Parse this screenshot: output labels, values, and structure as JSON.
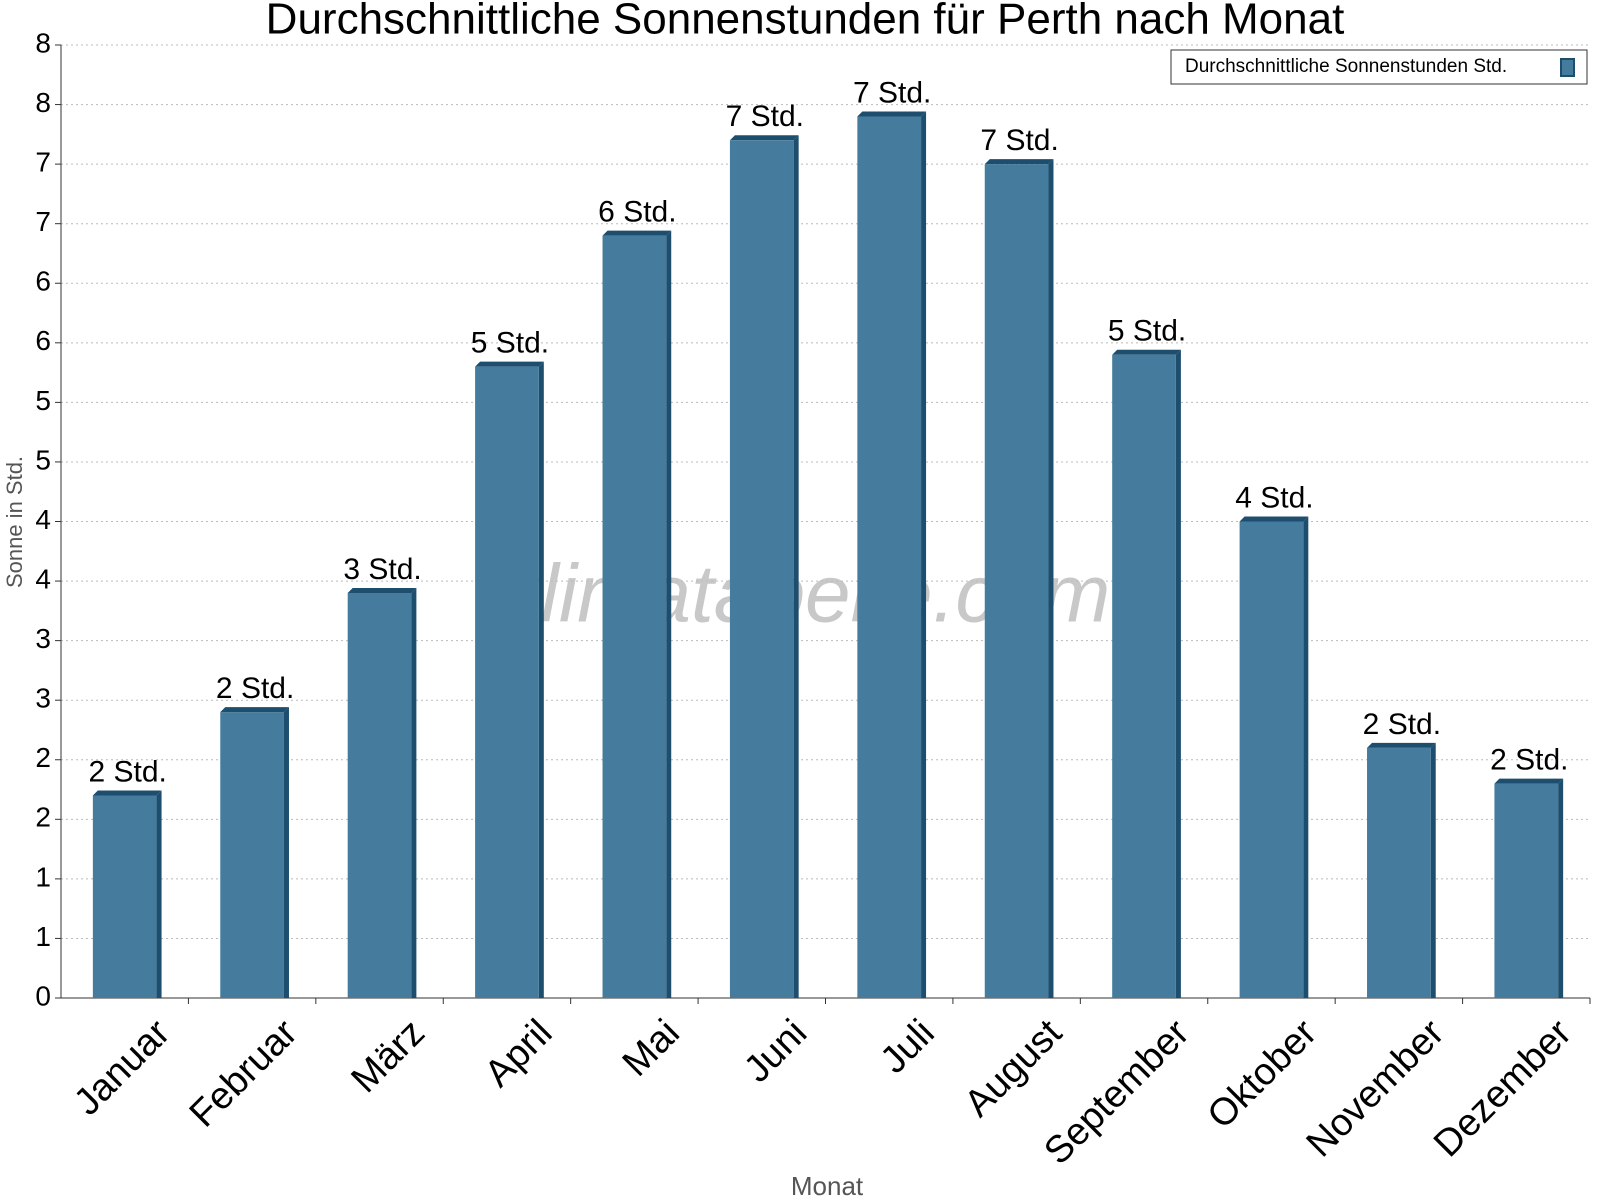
{
  "chart_data": {
    "type": "bar",
    "title": "Durchschnittliche Sonnenstunden für Perth nach Monat",
    "x_label": "Monat",
    "y_label": "Sonne in Std.",
    "watermark": "klimatabelle.com",
    "categories": [
      "Januar",
      "Februar",
      "März",
      "April",
      "Mai",
      "Juni",
      "Juli",
      "August",
      "September",
      "Oktober",
      "November",
      "Dezember"
    ],
    "series": [
      {
        "name": "Durchschnittliche Sonnenstunden Std.",
        "color": "#457b9d",
        "values": [
          1.7,
          2.4,
          3.4,
          5.3,
          6.4,
          7.2,
          7.4,
          7.0,
          5.4,
          4.0,
          2.1,
          1.8
        ],
        "value_labels": [
          "2 Std.",
          "2 Std.",
          "3 Std.",
          "5 Std.",
          "6 Std.",
          "7 Std.",
          "7 Std.",
          "7 Std.",
          "5 Std.",
          "4 Std.",
          "2 Std.",
          "2 Std."
        ]
      }
    ],
    "ylim": [
      0,
      8
    ],
    "yticks": [
      0,
      {
        "value": 0.5,
        "label": "1"
      },
      1,
      {
        "value": 1.5,
        "label": "2"
      },
      2,
      {
        "value": 2.5,
        "label": "3"
      },
      3,
      {
        "value": 3.5,
        "label": "4"
      },
      4,
      {
        "value": 4.5,
        "label": "5"
      },
      5,
      {
        "value": 5.5,
        "label": "6"
      },
      6,
      {
        "value": 6.5,
        "label": "7"
      },
      7,
      {
        "value": 7.5,
        "label": "8"
      },
      8
    ],
    "grid": true,
    "legend": "top-right"
  }
}
